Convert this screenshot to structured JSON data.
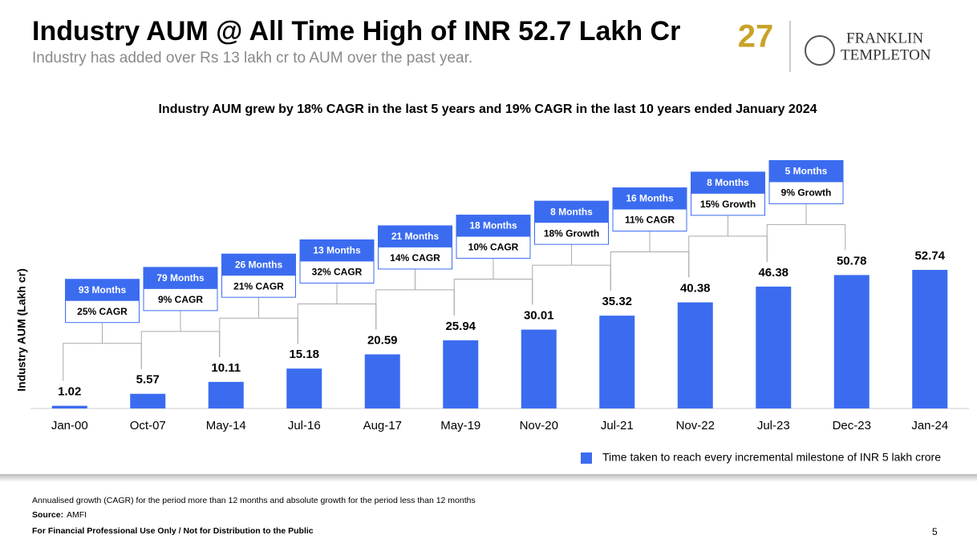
{
  "header": {
    "title": "Industry AUM @ All Time High of INR 52.7 Lakh Cr",
    "subtitle": "Industry has added over Rs 13 lakh cr to AUM over the past year."
  },
  "logo": {
    "badge": "27",
    "brand_top": "FRANKLIN",
    "brand_bottom": "TEMPLETON"
  },
  "chart_data": {
    "type": "bar",
    "title": "Industry AUM grew by 18% CAGR in the last 5 years and 19% CAGR in the last 10 years ended January 2024",
    "y_label": "Industry AUM (Lakh cr)",
    "categories": [
      "Jan-00",
      "Oct-07",
      "May-14",
      "Jul-16",
      "Aug-17",
      "May-19",
      "Nov-20",
      "Jul-21",
      "Nov-22",
      "Jul-23",
      "Dec-23",
      "Jan-24"
    ],
    "series": [
      {
        "name": "Time taken to reach every incremental milestone of INR 5 lakh crore",
        "color": "#3b6cf0",
        "values": [
          1.02,
          5.57,
          10.11,
          15.18,
          20.59,
          25.94,
          30.01,
          35.32,
          40.38,
          46.38,
          50.78,
          52.74
        ]
      }
    ],
    "annotations": [
      {
        "period": "93 Months",
        "growth": "25% CAGR"
      },
      {
        "period": "79 Months",
        "growth": "9% CAGR"
      },
      {
        "period": "26 Months",
        "growth": "21% CAGR"
      },
      {
        "period": "13 Months",
        "growth": "32% CAGR"
      },
      {
        "period": "21 Months",
        "growth": "14% CAGR"
      },
      {
        "period": "18 Months",
        "growth": "10% CAGR"
      },
      {
        "period": "8 Months",
        "growth": "18% Growth"
      },
      {
        "period": "16 Months",
        "growth": "11% CAGR"
      },
      {
        "period": "8 Months",
        "growth": "15% Growth"
      },
      {
        "period": "5 Months",
        "growth": "9% Growth"
      }
    ],
    "legend": "bottom-right"
  },
  "footer": {
    "note": "Annualised growth (CAGR) for the period more than 12 months and absolute growth for the period less than 12 months",
    "source_label": "Source:",
    "source": "AMFI",
    "disclaimer": "For Financial Professional Use Only / Not for Distribution to the Public",
    "page": "5"
  }
}
